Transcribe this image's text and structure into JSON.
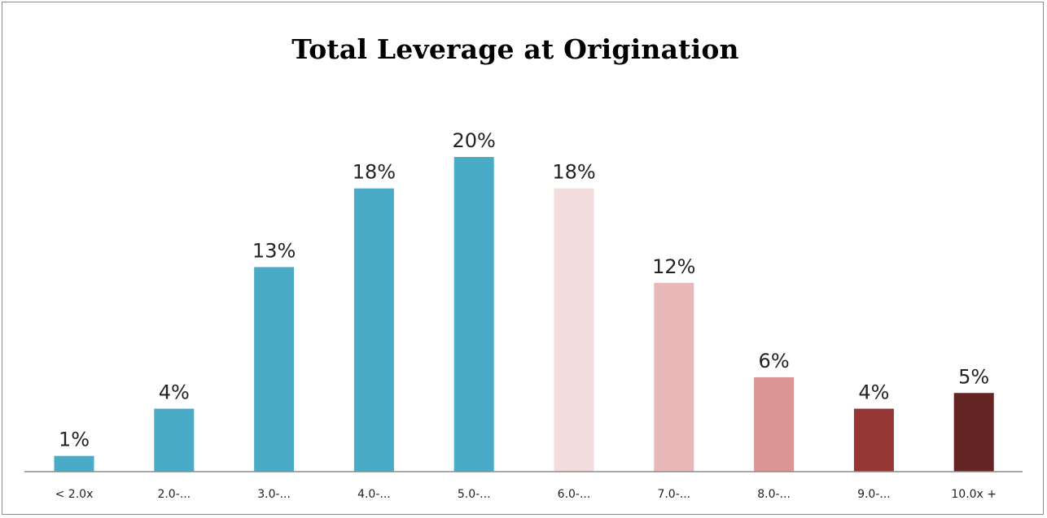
{
  "chart_data": {
    "type": "bar",
    "title": "Total Leverage at Origination",
    "xlabel": "",
    "ylabel": "",
    "ylim": [
      0,
      20
    ],
    "grid": false,
    "legend": "none",
    "categories": [
      "< 2.0x",
      "2.0-...",
      "3.0-...",
      "4.0-...",
      "5.0-...",
      "6.0-...",
      "7.0-...",
      "8.0-...",
      "9.0-...",
      "10.0x +"
    ],
    "values": [
      1,
      4,
      13,
      18,
      20,
      18,
      12,
      6,
      4,
      5
    ],
    "data_labels": [
      "1%",
      "4%",
      "13%",
      "18%",
      "20%",
      "18%",
      "12%",
      "6%",
      "4%",
      "5%"
    ],
    "colors": [
      "#4aabc6",
      "#4aabc6",
      "#4aabc6",
      "#4aabc6",
      "#4aabc6",
      "#f2dcdc",
      "#e8b8b8",
      "#dc9695",
      "#963634",
      "#632423"
    ]
  }
}
